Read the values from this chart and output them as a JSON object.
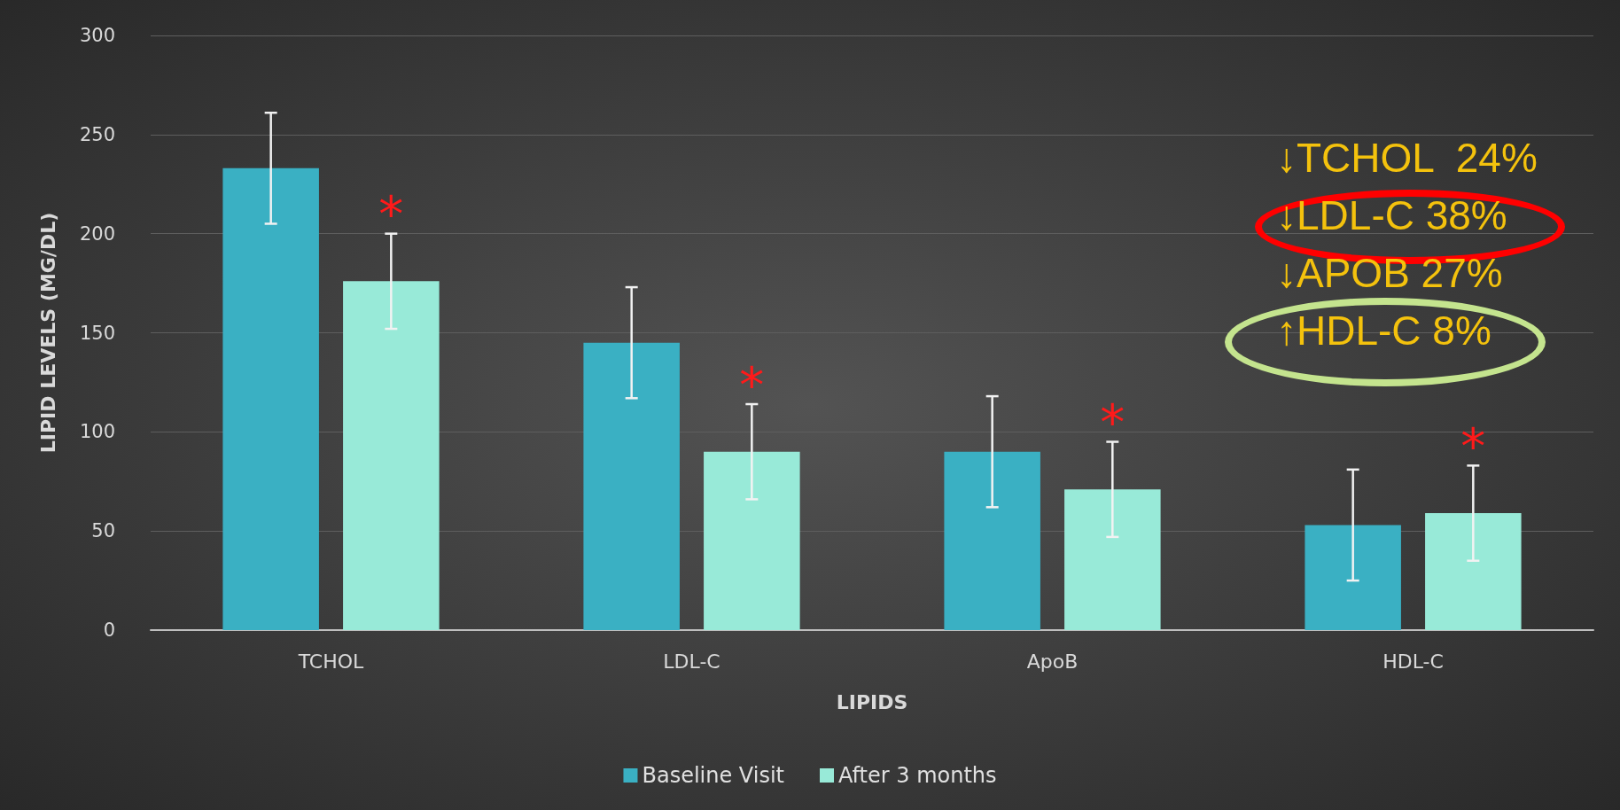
{
  "chart_data": {
    "type": "bar",
    "xlabel": "LIPIDS",
    "ylabel": "LIPID LEVELS (MG/DL)",
    "categories": [
      "TCHOL",
      "LDL-C",
      "ApoB",
      "HDL-C"
    ],
    "series": [
      {
        "name": "Baseline Visit",
        "color": "#3ab0c3",
        "values": [
          233,
          145,
          90,
          53
        ],
        "errors": [
          28,
          28,
          28,
          28
        ]
      },
      {
        "name": "After 3 months",
        "color": "#98ead8",
        "values": [
          176,
          90,
          71,
          59
        ],
        "errors": [
          24,
          24,
          24,
          24
        ]
      }
    ],
    "ylim": [
      0,
      300
    ],
    "yticks": [
      0,
      50,
      100,
      150,
      200,
      250,
      300
    ],
    "grid": "y",
    "legend": "bottom",
    "annotations": [
      "*",
      "*",
      "*",
      "*",
      "↓TCHOL  24%",
      "↓LDL-C 38%",
      "↓APOB 27%",
      "↑HDL-C 8%"
    ]
  }
}
